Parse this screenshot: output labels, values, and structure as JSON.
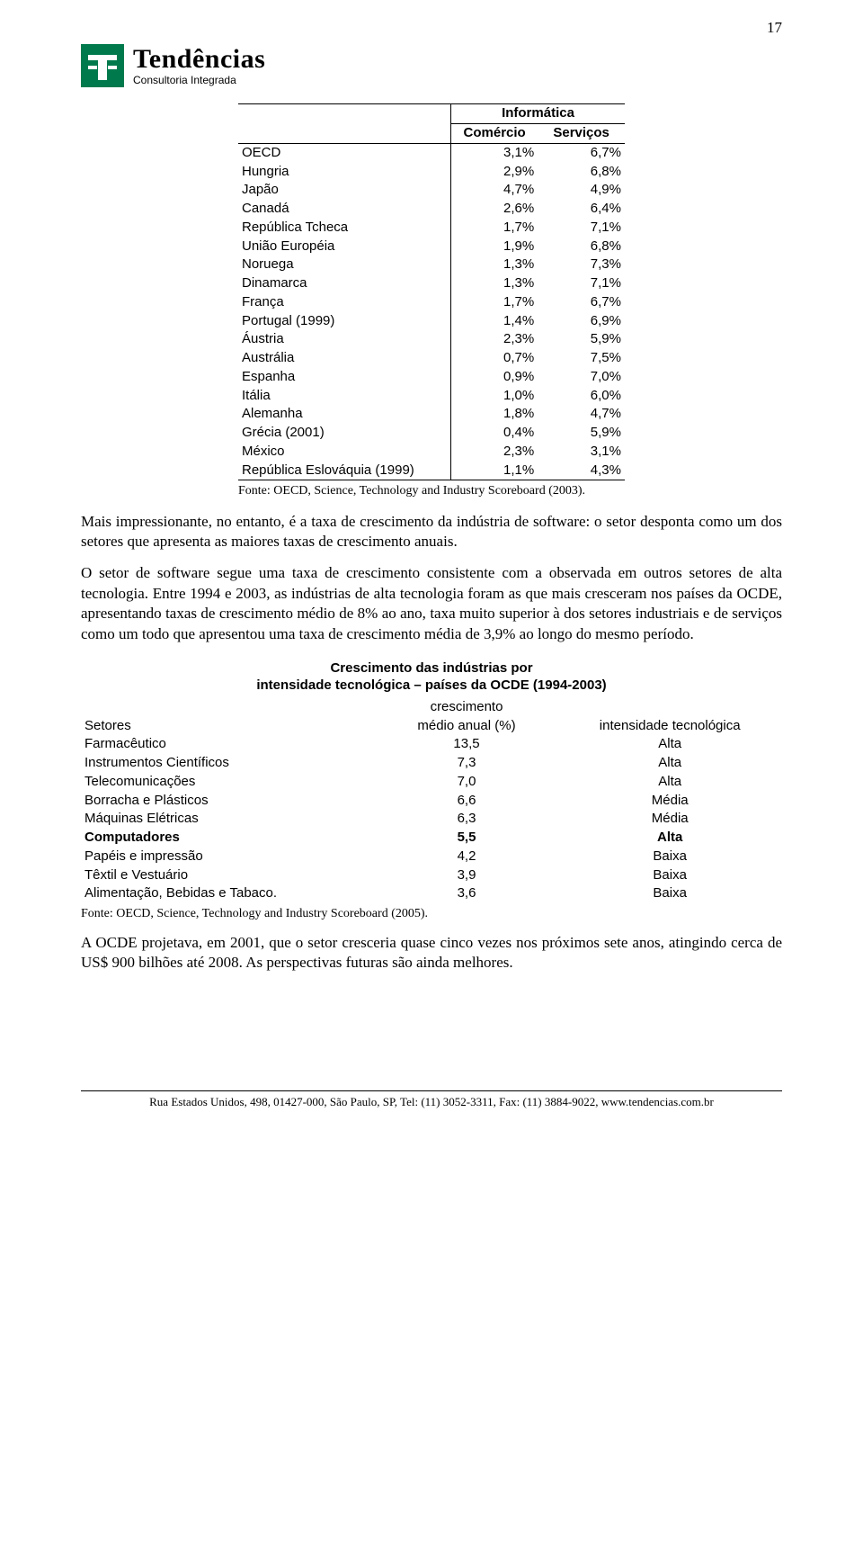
{
  "page_number": "17",
  "brand": {
    "name": "Tendências",
    "sub": "Consultoria Integrada"
  },
  "table1": {
    "span_header": "Informática",
    "col2_header": "Comércio",
    "col3_header": "Serviços",
    "rows": [
      {
        "label": "OECD",
        "c": "3,1%",
        "s": "6,7%"
      },
      {
        "label": "Hungria",
        "c": "2,9%",
        "s": "6,8%"
      },
      {
        "label": "Japão",
        "c": "4,7%",
        "s": "4,9%"
      },
      {
        "label": "Canadá",
        "c": "2,6%",
        "s": "6,4%"
      },
      {
        "label": "República Tcheca",
        "c": "1,7%",
        "s": "7,1%"
      },
      {
        "label": "União Européia",
        "c": "1,9%",
        "s": "6,8%"
      },
      {
        "label": "Noruega",
        "c": "1,3%",
        "s": "7,3%"
      },
      {
        "label": "Dinamarca",
        "c": "1,3%",
        "s": "7,1%"
      },
      {
        "label": "França",
        "c": "1,7%",
        "s": "6,7%"
      },
      {
        "label": "Portugal (1999)",
        "c": "1,4%",
        "s": "6,9%"
      },
      {
        "label": "Áustria",
        "c": "2,3%",
        "s": "5,9%"
      },
      {
        "label": "Austrália",
        "c": "0,7%",
        "s": "7,5%"
      },
      {
        "label": "Espanha",
        "c": "0,9%",
        "s": "7,0%"
      },
      {
        "label": "Itália",
        "c": "1,0%",
        "s": "6,0%"
      },
      {
        "label": "Alemanha",
        "c": "1,8%",
        "s": "4,7%"
      },
      {
        "label": "Grécia (2001)",
        "c": "0,4%",
        "s": "5,9%"
      },
      {
        "label": "México",
        "c": "2,3%",
        "s": "3,1%"
      },
      {
        "label": "República Eslováquia (1999)",
        "c": "1,1%",
        "s": "4,3%"
      }
    ],
    "source": "Fonte: OECD, Science, Technology and Industry Scoreboard (2003)."
  },
  "para1": "Mais impressionante, no entanto, é a taxa de crescimento da indústria de software: o setor desponta como um dos setores que apresenta as maiores taxas de crescimento anuais.",
  "para2": "O setor de software segue uma taxa de crescimento consistente com a observada em outros setores de alta tecnologia. Entre 1994 e 2003, as indústrias de alta tecnologia foram as que mais cresceram nos países da OCDE, apresentando taxas de crescimento médio de 8% ao ano, taxa muito superior à dos setores industriais e de serviços como um todo que apresentou uma taxa de crescimento média de 3,9% ao longo do mesmo período.",
  "table2": {
    "title_l1": "Crescimento das indústrias por",
    "title_l2": "intensidade tecnológica – países da OCDE (1994-2003)",
    "head_c1": "Setores",
    "head_c2a": "crescimento",
    "head_c2b": "médio anual (%)",
    "head_c3": "intensidade tecnológica",
    "rows": [
      {
        "label": "Farmacêutico",
        "g": "13,5",
        "i": "Alta",
        "bold": false
      },
      {
        "label": "Instrumentos Científicos",
        "g": "7,3",
        "i": "Alta",
        "bold": false
      },
      {
        "label": "Telecomunicações",
        "g": "7,0",
        "i": "Alta",
        "bold": false
      },
      {
        "label": "Borracha e Plásticos",
        "g": "6,6",
        "i": "Média",
        "bold": false
      },
      {
        "label": "Máquinas Elétricas",
        "g": "6,3",
        "i": "Média",
        "bold": false
      },
      {
        "label": "Computadores",
        "g": "5,5",
        "i": "Alta",
        "bold": true
      },
      {
        "label": "Papéis e impressão",
        "g": "4,2",
        "i": "Baixa",
        "bold": false
      },
      {
        "label": "Têxtil e Vestuário",
        "g": "3,9",
        "i": "Baixa",
        "bold": false
      },
      {
        "label": "Alimentação, Bebidas e Tabaco.",
        "g": "3,6",
        "i": "Baixa",
        "bold": false
      }
    ],
    "source": "Fonte: OECD, Science, Technology and Industry Scoreboard (2005)."
  },
  "para3": "A OCDE projetava, em 2001, que o setor cresceria quase cinco vezes nos próximos sete anos, atingindo cerca de US$ 900 bilhões até 2008. As perspectivas futuras são ainda melhores.",
  "footer": "Rua Estados Unidos, 498, 01427-000, São Paulo, SP, Tel: (11) 3052-3311, Fax: (11) 3884-9022, www.tendencias.com.br"
}
